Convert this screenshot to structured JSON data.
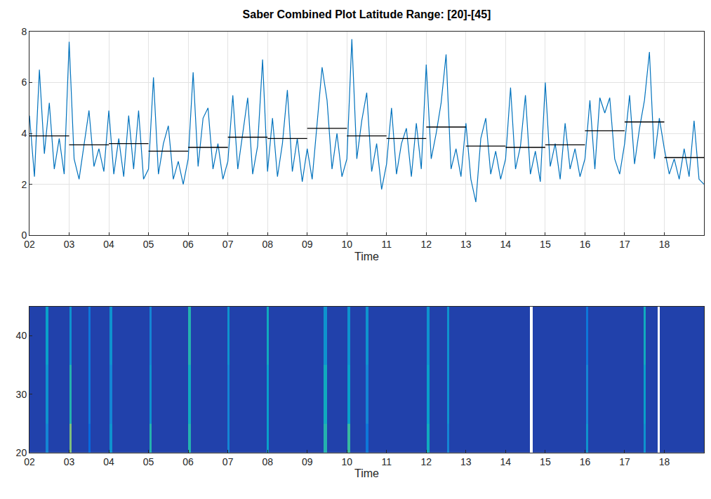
{
  "chart_data": [
    {
      "type": "line",
      "title": "Saber Combined Plot Latitude Range: [20]-[45]",
      "x_label": "Time",
      "xlim": [
        2,
        19
      ],
      "xticks": [
        {
          "value": 2,
          "label": "02"
        },
        {
          "value": 3,
          "label": "03"
        },
        {
          "value": 4,
          "label": "04"
        },
        {
          "value": 5,
          "label": "05"
        },
        {
          "value": 6,
          "label": "06"
        },
        {
          "value": 7,
          "label": "07"
        },
        {
          "value": 8,
          "label": "08"
        },
        {
          "value": 9,
          "label": "09"
        },
        10,
        11,
        12,
        13,
        14,
        15,
        16,
        17,
        18
      ],
      "ylim": [
        0,
        8
      ],
      "yticks": [
        0,
        2,
        4,
        6,
        8
      ],
      "grid": true,
      "series": [
        {
          "color": "#0072bd",
          "x": [
            2,
            2.125,
            2.25,
            2.375,
            2.5,
            2.625,
            2.75,
            2.875,
            3,
            3.125,
            3.25,
            3.375,
            3.5,
            3.625,
            3.75,
            3.875,
            4,
            4.125,
            4.25,
            4.375,
            4.5,
            4.625,
            4.75,
            4.875,
            5,
            5.125,
            5.25,
            5.375,
            5.5,
            5.625,
            5.75,
            5.875,
            6,
            6.125,
            6.25,
            6.375,
            6.5,
            6.625,
            6.75,
            6.875,
            7,
            7.125,
            7.25,
            7.375,
            7.5,
            7.625,
            7.75,
            7.875,
            8,
            8.125,
            8.25,
            8.375,
            8.5,
            8.625,
            8.75,
            8.875,
            9,
            9.125,
            9.25,
            9.375,
            9.5,
            9.625,
            9.75,
            9.875,
            10,
            10.125,
            10.25,
            10.375,
            10.5,
            10.625,
            10.75,
            10.875,
            11,
            11.125,
            11.25,
            11.375,
            11.5,
            11.625,
            11.75,
            11.875,
            12,
            12.125,
            12.25,
            12.375,
            12.5,
            12.625,
            12.75,
            12.875,
            13,
            13.125,
            13.25,
            13.375,
            13.5,
            13.625,
            13.75,
            13.875,
            14,
            14.125,
            14.25,
            14.375,
            14.5,
            14.625,
            14.75,
            14.875,
            15,
            15.125,
            15.25,
            15.375,
            15.5,
            15.625,
            15.75,
            15.875,
            16,
            16.125,
            16.25,
            16.375,
            16.5,
            16.625,
            16.75,
            16.875,
            17,
            17.125,
            17.25,
            17.375,
            17.5,
            17.625,
            17.75,
            17.875,
            18,
            18.125,
            18.25,
            18.375,
            18.5,
            18.625,
            18.75,
            18.875,
            19
          ],
          "values": [
            4.7,
            2.3,
            6.5,
            3.2,
            5.2,
            2.6,
            3.8,
            2.4,
            7.6,
            3.0,
            2.2,
            3.6,
            4.9,
            2.7,
            3.4,
            2.5,
            4.9,
            2.4,
            3.8,
            2.3,
            4.7,
            2.6,
            4.9,
            2.2,
            2.6,
            6.2,
            2.4,
            3.6,
            4.3,
            2.2,
            2.9,
            2.0,
            3.0,
            6.4,
            2.7,
            4.6,
            5.0,
            2.6,
            3.6,
            2.2,
            2.9,
            5.5,
            2.6,
            4.0,
            5.4,
            2.4,
            3.5,
            6.9,
            2.5,
            4.6,
            2.3,
            3.6,
            5.7,
            2.5,
            3.8,
            2.1,
            3.4,
            2.2,
            4.4,
            6.6,
            5.3,
            2.6,
            4.0,
            2.3,
            3.0,
            7.7,
            3.0,
            4.5,
            5.6,
            2.5,
            3.6,
            1.8,
            2.8,
            5.0,
            2.4,
            3.6,
            4.2,
            2.3,
            4.4,
            2.6,
            6.7,
            3.0,
            4.0,
            5.2,
            7.1,
            2.6,
            3.4,
            2.3,
            4.4,
            2.2,
            1.3,
            3.8,
            4.6,
            2.4,
            3.3,
            2.2,
            3.0,
            5.8,
            2.6,
            3.5,
            5.5,
            2.4,
            3.3,
            2.1,
            6.0,
            2.7,
            3.6,
            2.2,
            4.4,
            2.6,
            3.4,
            2.3,
            3.0,
            5.3,
            2.6,
            5.4,
            4.8,
            5.4,
            3.0,
            2.4,
            3.6,
            5.5,
            2.8,
            4.2,
            5.3,
            7.2,
            3.0,
            4.6,
            3.4,
            2.4,
            3.0,
            2.2,
            3.4,
            2.3,
            4.5,
            2.2,
            2.0
          ]
        }
      ],
      "segments": {
        "color": "#000000",
        "x_start": [
          2,
          3,
          4,
          5,
          6,
          7,
          8,
          9,
          10,
          11,
          12,
          13,
          14,
          15,
          16,
          17,
          18
        ],
        "x_end": [
          3,
          4,
          5,
          6,
          7,
          8,
          9,
          10,
          11,
          12,
          13,
          14,
          15,
          16,
          17,
          18,
          19
        ],
        "values": [
          3.9,
          3.55,
          3.6,
          3.3,
          3.45,
          3.85,
          3.8,
          4.2,
          3.9,
          3.8,
          4.25,
          3.5,
          3.45,
          3.55,
          4.1,
          4.45,
          3.05
        ]
      }
    },
    {
      "type": "heatmap",
      "x_label": "Time",
      "xlim": [
        2,
        19
      ],
      "xticks": [
        {
          "value": 2,
          "label": "02"
        },
        {
          "value": 3,
          "label": "03"
        },
        {
          "value": 4,
          "label": "04"
        },
        {
          "value": 5,
          "label": "05"
        },
        {
          "value": 6,
          "label": "06"
        },
        {
          "value": 7,
          "label": "07"
        },
        {
          "value": 8,
          "label": "08"
        },
        {
          "value": 9,
          "label": "09"
        },
        10,
        11,
        12,
        13,
        14,
        15,
        16,
        17,
        18
      ],
      "ylim": [
        20,
        45
      ],
      "yticks": [
        20,
        30,
        40
      ],
      "grid": false,
      "x": [
        2,
        2.4,
        2.48,
        3,
        3.07,
        3.48,
        3.54,
        4.02,
        4.08,
        5.02,
        5.08,
        6,
        6.07,
        6.98,
        7.04,
        7.98,
        8.04,
        9.42,
        9.5,
        10.02,
        10.08,
        10.48,
        10.54,
        12.02,
        12.09,
        12.52,
        12.58,
        14.62,
        14.68,
        16.02,
        16.08,
        17.48,
        17.54,
        17.84,
        17.88,
        19
      ],
      "y": [
        20,
        25,
        35,
        45
      ],
      "z": [
        [
          0.05,
          0.25,
          0.05,
          0.6,
          0.05,
          0.15,
          0.05,
          0.3,
          0.05,
          0.45,
          0.05,
          0.45,
          0.05,
          0.25,
          0.05,
          0.35,
          0.05,
          0.45,
          0.05,
          0.5,
          0.05,
          0.2,
          0.05,
          0.4,
          0.05,
          0.25,
          0.05,
          null,
          0.05,
          0.3,
          0.05,
          0.3,
          0.05,
          null,
          0.05
        ],
        [
          0.05,
          0.3,
          0.05,
          0.45,
          0.05,
          0.2,
          0.05,
          0.25,
          0.05,
          0.3,
          0.05,
          0.4,
          0.05,
          0.25,
          0.05,
          0.35,
          0.05,
          0.4,
          0.05,
          0.35,
          0.05,
          0.25,
          0.05,
          0.35,
          0.05,
          0.3,
          0.05,
          null,
          0.05,
          0.25,
          0.05,
          0.35,
          0.05,
          null,
          0.05
        ],
        [
          0.05,
          0.35,
          0.05,
          0.3,
          0.05,
          0.2,
          0.05,
          0.3,
          0.05,
          0.25,
          0.05,
          0.45,
          0.05,
          0.3,
          0.05,
          0.4,
          0.05,
          0.3,
          0.05,
          0.3,
          0.05,
          0.3,
          0.05,
          0.3,
          0.05,
          0.3,
          0.05,
          null,
          0.05,
          0.2,
          0.05,
          0.4,
          0.05,
          null,
          0.05
        ]
      ],
      "zlim": [
        0,
        1
      ]
    }
  ]
}
